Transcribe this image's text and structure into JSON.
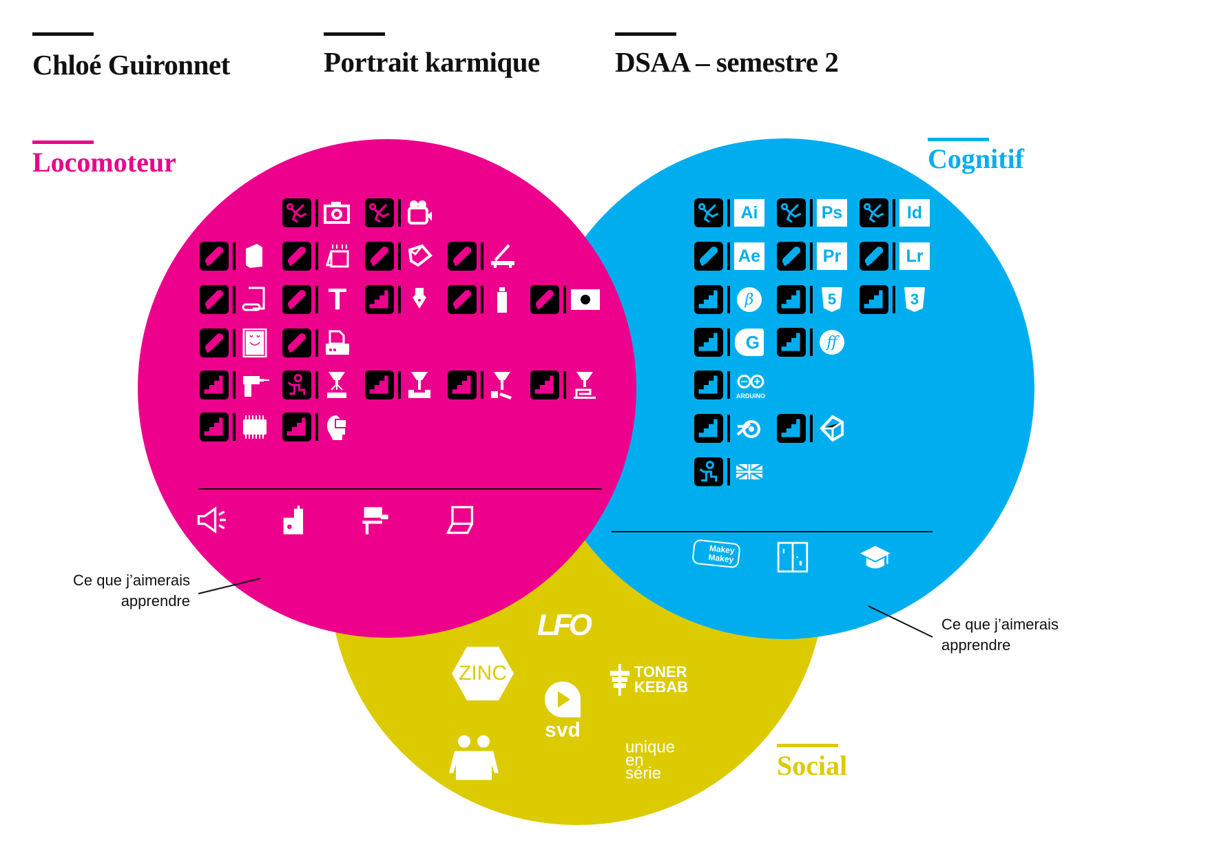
{
  "header": [
    {
      "title": "Chloé Guironnet"
    },
    {
      "title": "Portrait karmique"
    },
    {
      "title": "DSAA – semestre 2"
    }
  ],
  "colors": {
    "locomoteur": "#EC008C",
    "cognitif": "#00AEEF",
    "social": "#DCCB00",
    "ink": "#111111"
  },
  "locomoteur": {
    "label": "Locomoteur",
    "rows": [
      [
        null,
        {
          "level": "figure-running",
          "skill": "camera"
        },
        {
          "level": "figure-running",
          "skill": "video-camera"
        }
      ],
      [
        {
          "level": "skateboard",
          "skill": "book"
        },
        {
          "level": "skateboard",
          "skill": "canvas-frame"
        },
        {
          "level": "skateboard",
          "skill": "cube"
        },
        {
          "level": "skateboard",
          "skill": "paper-cutter"
        }
      ],
      [
        {
          "level": "skateboard",
          "skill": "paper-roll"
        },
        {
          "level": "skateboard",
          "skill": "typography",
          "text": "T"
        },
        {
          "level": "stairs",
          "skill": "pen-nib"
        },
        {
          "level": "skateboard",
          "skill": "spray-can"
        },
        {
          "level": "skateboard",
          "skill": "sticker"
        }
      ],
      [
        {
          "level": "skateboard",
          "skill": "smiley-drawing"
        },
        {
          "level": "skateboard",
          "skill": "printer"
        }
      ],
      [
        {
          "level": "stairs",
          "skill": "drill"
        },
        {
          "level": "figure-sitting",
          "skill": "laser-cutter"
        },
        {
          "level": "stairs",
          "skill": "cnc-mill"
        },
        {
          "level": "stairs",
          "skill": "cnc-router"
        },
        {
          "level": "stairs",
          "skill": "3d-printer"
        }
      ],
      [
        {
          "level": "stairs",
          "skill": "microchip"
        },
        {
          "level": "stairs",
          "skill": "vr-headset"
        }
      ]
    ],
    "to_learn": [
      "megaphone",
      "sewing-machine",
      "heat-press",
      "laptop"
    ]
  },
  "cognitif": {
    "label": "Cognitif",
    "rows": [
      [
        {
          "level": "figure-running",
          "skill": "illustrator",
          "text": "Ai"
        },
        {
          "level": "figure-running",
          "skill": "photoshop",
          "text": "Ps"
        },
        {
          "level": "figure-running",
          "skill": "indesign",
          "text": "Id"
        }
      ],
      [
        {
          "level": "skateboard",
          "skill": "after-effects",
          "text": "Ae"
        },
        {
          "level": "skateboard",
          "skill": "premiere",
          "text": "Pr"
        },
        {
          "level": "skateboard",
          "skill": "lightroom",
          "text": "Lr"
        }
      ],
      [
        {
          "level": "stairs",
          "skill": "brackets",
          "text": "β"
        },
        {
          "level": "stairs",
          "skill": "html5",
          "text": "5"
        },
        {
          "level": "stairs",
          "skill": "css3",
          "text": "3"
        }
      ],
      [
        {
          "level": "stairs",
          "skill": "glyphs",
          "text": "G"
        },
        {
          "level": "stairs",
          "skill": "fontforge",
          "text": "ff"
        }
      ],
      [
        {
          "level": "stairs",
          "skill": "arduino",
          "text": "ARDUINO"
        }
      ],
      [
        {
          "level": "stairs",
          "skill": "blender"
        },
        {
          "level": "stairs",
          "skill": "unity"
        }
      ],
      [
        {
          "level": "figure-sitting",
          "skill": "uk-flag"
        }
      ]
    ],
    "to_learn": [
      {
        "icon": "makey-makey",
        "text": "Makey Makey"
      },
      {
        "icon": "pong-game"
      },
      {
        "icon": "graduation-cap"
      }
    ]
  },
  "social": {
    "label": "Social",
    "logos": {
      "lfo": "LFO",
      "zinc": "ZINC",
      "toner_kebab_1": "TONER",
      "toner_kebab_2": "KEBAB",
      "svd": "svd",
      "unique_1": "unique",
      "unique_2": "en",
      "unique_3": "série"
    }
  },
  "notes": {
    "left": [
      "Ce que j’aimerais",
      "apprendre"
    ],
    "right": [
      "Ce que j’aimerais",
      "apprendre"
    ]
  }
}
